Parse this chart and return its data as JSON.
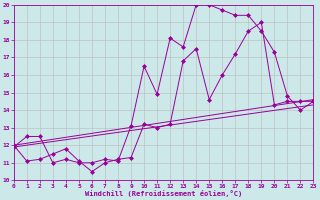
{
  "xlabel": "Windchill (Refroidissement éolien,°C)",
  "bg_color": "#cce8e8",
  "line_color": "#990099",
  "grid_color": "#bbbbbb",
  "xmin": 0,
  "xmax": 23,
  "ymin": 10,
  "ymax": 20,
  "line1_x": [
    0,
    1,
    2,
    3,
    4,
    5,
    6,
    7,
    8,
    9,
    10,
    11,
    12,
    13,
    14,
    15,
    16,
    17,
    18,
    19,
    20,
    21,
    22,
    23
  ],
  "line1_y": [
    11.9,
    12.5,
    12.5,
    11.0,
    11.2,
    11.0,
    11.0,
    11.2,
    11.1,
    13.1,
    16.5,
    14.9,
    18.1,
    17.6,
    20.0,
    20.0,
    19.7,
    19.4,
    19.4,
    18.5,
    17.3,
    14.8,
    14.0,
    14.5
  ],
  "line2_x": [
    0,
    1,
    2,
    3,
    4,
    5,
    6,
    7,
    8,
    9,
    10,
    11,
    12,
    13,
    14,
    15,
    16,
    17,
    18,
    19,
    20,
    21,
    22,
    23
  ],
  "line2_y": [
    12.0,
    11.1,
    11.2,
    11.5,
    11.8,
    11.1,
    10.5,
    11.0,
    11.2,
    11.3,
    13.2,
    13.0,
    13.2,
    16.8,
    17.5,
    14.6,
    16.0,
    17.2,
    18.5,
    19.0,
    14.3,
    14.5,
    14.5,
    14.5
  ],
  "line3_x": [
    0,
    23
  ],
  "line3_y": [
    11.9,
    14.3
  ],
  "line4_x": [
    0,
    23
  ],
  "line4_y": [
    12.0,
    14.6
  ]
}
